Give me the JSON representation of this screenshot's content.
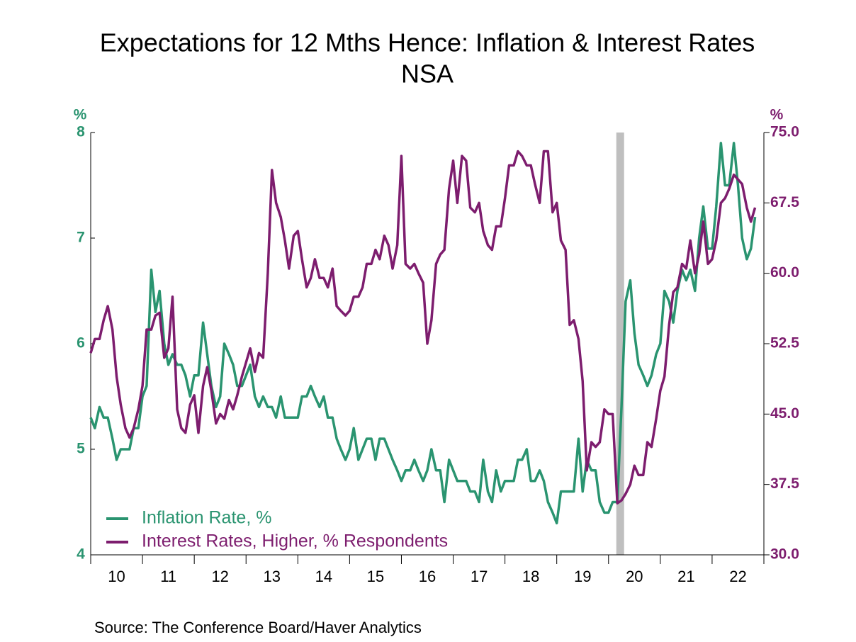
{
  "chart_data": {
    "type": "line",
    "title": "Expectations for 12 Mths Hence: Inflation & Interest Rates",
    "subtitle": "NSA",
    "y_unit": "%",
    "y2_unit": "%",
    "source": "Source:  The Conference Board/Haver Analytics",
    "xlim": [
      10,
      23
    ],
    "xticks": [
      {
        "value": 10.5,
        "label": "10"
      },
      {
        "value": 11.5,
        "label": "11"
      },
      {
        "value": 12.5,
        "label": "12"
      },
      {
        "value": 13.5,
        "label": "13"
      },
      {
        "value": 14.5,
        "label": "14"
      },
      {
        "value": 15.5,
        "label": "15"
      },
      {
        "value": 16.5,
        "label": "16"
      },
      {
        "value": 17.5,
        "label": "17"
      },
      {
        "value": 18.5,
        "label": "18"
      },
      {
        "value": 19.5,
        "label": "19"
      },
      {
        "value": 20.5,
        "label": "20"
      },
      {
        "value": 21.5,
        "label": "21"
      },
      {
        "value": 22.5,
        "label": "22"
      }
    ],
    "xticks_minor": [
      10,
      11,
      12,
      13,
      14,
      15,
      16,
      17,
      18,
      19,
      20,
      21,
      22,
      23
    ],
    "ylim": [
      4,
      8
    ],
    "yticks": [
      4,
      5,
      6,
      7,
      8
    ],
    "y2lim": [
      30,
      75
    ],
    "y2ticks": [
      {
        "value": 30,
        "label": "30.0"
      },
      {
        "value": 37.5,
        "label": "37.5"
      },
      {
        "value": 45,
        "label": "45.0"
      },
      {
        "value": 52.5,
        "label": "52.5"
      },
      {
        "value": 60,
        "label": "60.0"
      },
      {
        "value": 67.5,
        "label": "67.5"
      },
      {
        "value": 75,
        "label": "75.0"
      }
    ],
    "recession": [
      20.15,
      20.3
    ],
    "recession_color": "#bfbfbf",
    "legend": "lower left",
    "x": [
      10,
      10.08,
      10.17,
      10.25,
      10.33,
      10.42,
      10.5,
      10.58,
      10.67,
      10.75,
      10.83,
      10.92,
      11,
      11.08,
      11.17,
      11.25,
      11.33,
      11.42,
      11.5,
      11.58,
      11.67,
      11.75,
      11.83,
      11.92,
      12,
      12.08,
      12.17,
      12.25,
      12.33,
      12.42,
      12.5,
      12.58,
      12.67,
      12.75,
      12.83,
      12.92,
      13,
      13.08,
      13.17,
      13.25,
      13.33,
      13.42,
      13.5,
      13.58,
      13.67,
      13.75,
      13.83,
      13.92,
      14,
      14.08,
      14.17,
      14.25,
      14.33,
      14.42,
      14.5,
      14.58,
      14.67,
      14.75,
      14.83,
      14.92,
      15,
      15.08,
      15.17,
      15.25,
      15.33,
      15.42,
      15.5,
      15.58,
      15.67,
      15.75,
      15.83,
      15.92,
      16,
      16.08,
      16.17,
      16.25,
      16.33,
      16.42,
      16.5,
      16.58,
      16.67,
      16.75,
      16.83,
      16.92,
      17,
      17.08,
      17.17,
      17.25,
      17.33,
      17.42,
      17.5,
      17.58,
      17.67,
      17.75,
      17.83,
      17.92,
      18,
      18.08,
      18.17,
      18.25,
      18.33,
      18.42,
      18.5,
      18.58,
      18.67,
      18.75,
      18.83,
      18.92,
      19,
      19.08,
      19.17,
      19.25,
      19.33,
      19.42,
      19.5,
      19.58,
      19.67,
      19.75,
      19.83,
      19.92,
      20,
      20.08,
      20.17,
      20.25,
      20.33,
      20.42,
      20.5,
      20.58,
      20.67,
      20.75,
      20.83,
      20.92,
      21,
      21.08,
      21.17,
      21.25,
      21.33,
      21.42,
      21.5,
      21.58,
      21.67,
      21.75,
      21.83,
      21.92,
      22,
      22.08,
      22.17,
      22.25,
      22.33,
      22.42,
      22.5,
      22.58,
      22.67,
      22.75,
      22.83
    ],
    "series": [
      {
        "name": "Inflation Rate, %",
        "color": "#2a9470",
        "values": [
          5.3,
          5.2,
          5.4,
          5.3,
          5.3,
          5.1,
          4.9,
          5.0,
          5.0,
          5.0,
          5.2,
          5.2,
          5.5,
          5.6,
          6.7,
          6.3,
          6.5,
          6.0,
          5.8,
          5.9,
          5.8,
          5.8,
          5.7,
          5.5,
          5.7,
          5.7,
          6.2,
          5.9,
          5.6,
          5.4,
          5.5,
          6.0,
          5.9,
          5.8,
          5.6,
          5.6,
          5.7,
          5.8,
          5.5,
          5.4,
          5.5,
          5.4,
          5.4,
          5.3,
          5.5,
          5.3,
          5.3,
          5.3,
          5.3,
          5.5,
          5.5,
          5.6,
          5.5,
          5.4,
          5.5,
          5.3,
          5.3,
          5.1,
          5.0,
          4.9,
          5.0,
          5.2,
          4.9,
          5.0,
          5.1,
          5.1,
          4.9,
          5.1,
          5.1,
          5.0,
          4.9,
          4.8,
          4.7,
          4.8,
          4.8,
          4.9,
          4.8,
          4.7,
          4.8,
          5.0,
          4.8,
          4.8,
          4.5,
          4.9,
          4.8,
          4.7,
          4.7,
          4.7,
          4.6,
          4.6,
          4.5,
          4.9,
          4.6,
          4.5,
          4.8,
          4.6,
          4.7,
          4.7,
          4.7,
          4.9,
          4.9,
          5.0,
          4.7,
          4.7,
          4.8,
          4.7,
          4.5,
          4.4,
          4.3,
          4.6,
          4.6,
          4.6,
          4.6,
          5.1,
          4.6,
          4.9,
          4.8,
          4.8,
          4.5,
          4.4,
          4.4,
          4.5,
          4.5,
          5.4,
          6.4,
          6.6,
          6.1,
          5.8,
          5.7,
          5.6,
          5.7,
          5.9,
          6.0,
          6.5,
          6.4,
          6.2,
          6.5,
          6.7,
          6.6,
          6.7,
          6.5,
          7.0,
          7.3,
          6.9,
          6.9,
          7.3,
          7.9,
          7.5,
          7.5,
          7.9,
          7.5,
          7.0,
          6.8,
          6.9,
          7.2
        ]
      },
      {
        "name": "Interest Rates, Higher, % Respondents",
        "color": "#7d1d6e",
        "axis": "y2",
        "values": [
          51.5,
          53,
          53,
          55,
          56.5,
          54,
          49,
          46,
          43.5,
          42.5,
          43.5,
          45.5,
          48,
          54,
          54,
          55.5,
          55.8,
          51,
          52,
          57.5,
          45.5,
          43.5,
          43,
          46,
          47,
          43,
          48,
          50,
          47.5,
          44,
          45,
          44.5,
          46.5,
          45.5,
          47,
          49,
          50.5,
          52,
          49.5,
          51.5,
          51,
          60,
          71,
          67.5,
          66,
          63.5,
          60.5,
          64,
          64.5,
          61.5,
          58.5,
          59.5,
          61.5,
          59.5,
          59.5,
          58.5,
          60.5,
          56.5,
          56,
          55.5,
          56,
          57.5,
          57.5,
          58.5,
          61,
          61,
          62.5,
          61.5,
          64,
          63,
          60.5,
          63,
          72.5,
          61,
          60.5,
          61,
          60,
          59,
          52.5,
          55,
          61,
          62,
          62.5,
          69,
          72,
          67.5,
          72.5,
          72,
          67,
          66.5,
          67.5,
          64.5,
          63,
          62.5,
          65,
          65,
          68,
          71.5,
          71.5,
          73,
          72.5,
          71.5,
          71.5,
          69.5,
          67.5,
          73,
          73,
          66.5,
          67.5,
          63.5,
          62.5,
          54.5,
          55,
          53,
          48.5,
          39,
          42,
          41.5,
          42,
          45.5,
          45,
          45,
          35.5,
          35.8,
          36.5,
          37.5,
          39.5,
          38.5,
          38.5,
          42,
          41.5,
          44.5,
          47.5,
          49,
          54.5,
          58,
          58.5,
          61,
          60.5,
          63.5,
          60,
          62,
          65.5,
          61,
          61.5,
          63.5,
          67.5,
          68,
          69,
          70.5,
          70,
          69.5,
          67,
          65.5,
          67
        ]
      }
    ]
  }
}
